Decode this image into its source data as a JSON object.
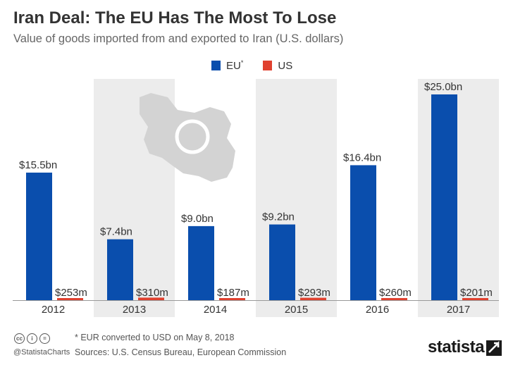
{
  "header": {
    "title": "Iran Deal: The EU Has The Most To Lose",
    "subtitle": "Value of goods imported from and exported to Iran (U.S. dollars)"
  },
  "legend": {
    "eu_label": "EU",
    "eu_marker": "*",
    "us_label": "US"
  },
  "colors": {
    "eu": "#0a4ead",
    "us": "#e0412f",
    "band": "#ececec",
    "map": "#d3d3d3"
  },
  "chart_data": {
    "type": "bar",
    "categories": [
      "2012",
      "2013",
      "2014",
      "2015",
      "2016",
      "2017"
    ],
    "series": [
      {
        "name": "EU*",
        "values": [
          15.5,
          7.4,
          9.0,
          9.2,
          16.4,
          25.0
        ],
        "unit": "bn",
        "labels": [
          "$15.5bn",
          "$7.4bn",
          "$9.0bn",
          "$9.2bn",
          "$16.4bn",
          "$25.0bn"
        ]
      },
      {
        "name": "US",
        "values": [
          0.253,
          0.31,
          0.187,
          0.293,
          0.26,
          0.201
        ],
        "unit": "bn",
        "labels": [
          "$253m",
          "$310m",
          "$187m",
          "$293m",
          "$260m",
          "$201m"
        ]
      }
    ],
    "ylim": [
      0,
      25.0
    ],
    "grid": false,
    "legend_position": "top-center",
    "shaded_categories": [
      "2013",
      "2015",
      "2017"
    ]
  },
  "footer": {
    "note": "* EUR converted to USD on May 8, 2018",
    "sources": "Sources: U.S. Census Bureau, European Commission",
    "handle": "@StatistaCharts",
    "brand": "statista",
    "cc_icons": [
      "cc-icon",
      "attribution-icon",
      "no-derivatives-icon"
    ]
  }
}
